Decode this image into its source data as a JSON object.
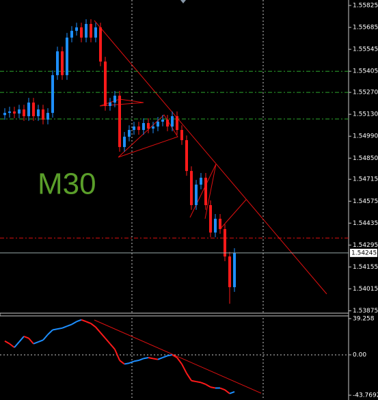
{
  "chart_data": [
    {
      "type": "candlestick",
      "annotation": "M30",
      "up_color": "#1e8fff",
      "down_color": "#ff1a1a",
      "open": [
        1.55125,
        1.55139,
        1.55148,
        1.55135,
        1.55161,
        1.55118,
        1.55205,
        1.55118,
        1.55161,
        1.55096,
        1.55139,
        1.5538,
        1.55532,
        1.5538,
        1.5562,
        1.55663,
        1.55685,
        1.5562,
        1.55707,
        1.5562,
        1.55685,
        1.55467,
        1.55183,
        1.55205,
        1.55249,
        1.54921,
        1.54987,
        1.5503,
        1.55052,
        1.5503,
        1.55074,
        1.55039,
        1.55052,
        1.55083,
        1.55096,
        1.55052,
        1.55118,
        1.5503,
        1.54965,
        1.54768,
        1.5455,
        1.54681,
        1.54725,
        1.5455,
        1.54375,
        1.54463,
        1.54397,
        1.54222,
        1.54026
      ],
      "high": [
        1.55169,
        1.55178,
        1.55178,
        1.55191,
        1.55191,
        1.55235,
        1.55235,
        1.55191,
        1.55191,
        1.55169,
        1.5541,
        1.55562,
        1.55562,
        1.5565,
        1.55693,
        1.55715,
        1.55715,
        1.55737,
        1.55737,
        1.55715,
        1.55715,
        1.55497,
        1.55235,
        1.55279,
        1.55279,
        1.55017,
        1.5506,
        1.55082,
        1.55082,
        1.55104,
        1.55104,
        1.55082,
        1.55113,
        1.55126,
        1.55126,
        1.55148,
        1.55148,
        1.5506,
        1.54995,
        1.54798,
        1.54711,
        1.54755,
        1.54755,
        1.5458,
        1.54493,
        1.54493,
        1.54427,
        1.54252,
        1.54275
      ],
      "low": [
        1.55095,
        1.55109,
        1.55105,
        1.55105,
        1.55088,
        1.55088,
        1.55088,
        1.55088,
        1.55066,
        1.55066,
        1.55109,
        1.5535,
        1.5535,
        1.5535,
        1.5559,
        1.55633,
        1.5559,
        1.5559,
        1.5559,
        1.5559,
        1.55437,
        1.55153,
        1.55153,
        1.55175,
        1.54891,
        1.54891,
        1.54957,
        1.55,
        1.55,
        1.55,
        1.55009,
        1.55009,
        1.55022,
        1.55053,
        1.55022,
        1.55022,
        1.55,
        1.54935,
        1.54738,
        1.5452,
        1.5452,
        1.54651,
        1.5452,
        1.54345,
        1.54345,
        1.54367,
        1.54192,
        1.5392,
        1.53996
      ],
      "close": [
        1.55139,
        1.55148,
        1.55135,
        1.55161,
        1.55118,
        1.55205,
        1.55118,
        1.55161,
        1.55096,
        1.55139,
        1.5538,
        1.55532,
        1.5538,
        1.5562,
        1.55663,
        1.55685,
        1.5562,
        1.55707,
        1.5562,
        1.55685,
        1.55467,
        1.55183,
        1.55205,
        1.55249,
        1.54921,
        1.54987,
        1.5503,
        1.55052,
        1.5503,
        1.55074,
        1.55039,
        1.55052,
        1.55083,
        1.55096,
        1.55052,
        1.55118,
        1.5503,
        1.54965,
        1.54768,
        1.5455,
        1.54681,
        1.54725,
        1.5455,
        1.54375,
        1.54463,
        1.54397,
        1.54222,
        1.54026,
        1.54245
      ],
      "ylim": [
        1.5386,
        1.5586
      ],
      "yticks": [
        1.55825,
        1.55685,
        1.55545,
        1.55405,
        {
          "value": 1.5527,
          "label": "1.55270"
        },
        {
          "value": 1.5513,
          "label": "1.55130"
        },
        {
          "value": 1.5499,
          "label": "1.54990"
        },
        {
          "value": 1.5485,
          "label": "1.54850"
        },
        1.54715,
        1.54575,
        1.54435,
        1.54295,
        1.54155,
        1.54015,
        1.53875
      ],
      "current_price": 1.54245,
      "levels": [
        {
          "value": 1.55405,
          "color": "#2ea82e"
        },
        {
          "value": 1.5527,
          "color": "#2ea82e"
        },
        {
          "value": 1.551,
          "color": "#2ea82e"
        },
        {
          "value": 1.5434,
          "color": "#e01010"
        }
      ]
    },
    {
      "type": "line",
      "up_color": "#1e8fff",
      "down_color": "#ff1a1a",
      "values": [
        15,
        12,
        8,
        14,
        20,
        18,
        12,
        14,
        16,
        22,
        27,
        28,
        29,
        31,
        33,
        36,
        38,
        36,
        34,
        30,
        24,
        18,
        12,
        6,
        -6,
        -10,
        -9,
        -7,
        -6,
        -4,
        -3,
        -4,
        -5,
        -3,
        -1,
        0,
        -3,
        -10,
        -20,
        -28,
        -29,
        -30,
        -32,
        -35,
        -36,
        -36,
        -38,
        -42,
        -40
      ],
      "ylim": [
        -48.96,
        42.2
      ],
      "yticks": [
        39.258,
        {
          "value": 0,
          "label": "0.00"
        },
        -43.7692
      ]
    }
  ]
}
